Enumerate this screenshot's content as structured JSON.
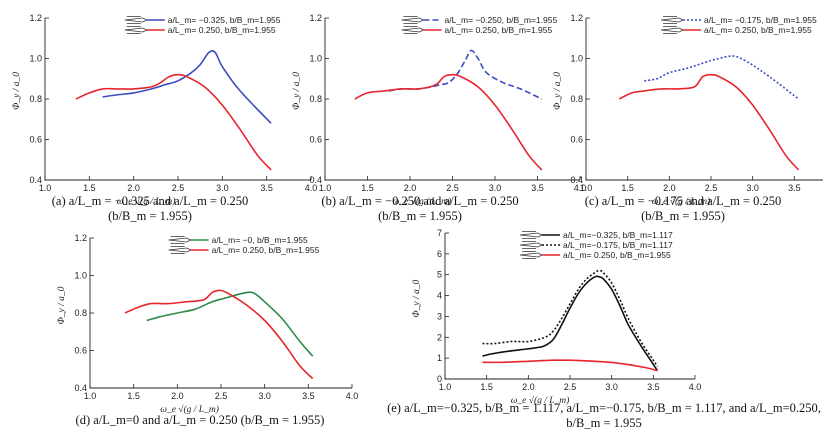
{
  "colors": {
    "blue": "#3b4cc0",
    "red": "#e8242c",
    "green": "#2e8a4a",
    "black": "#111111"
  },
  "chart_data": [
    {
      "id": "a",
      "type": "line",
      "caption": [
        "(a) a/L_m = −0.325 and a/L_m = 0.250",
        "(b/B_m = 1.955)"
      ],
      "xlabel": "ω_e √(g / L_m)",
      "ylabel": "Φ_y / a_0",
      "xlim": [
        1.0,
        4.0
      ],
      "ylim": [
        0.4,
        1.2
      ],
      "xticks": [
        "1.0",
        "1.5",
        "2.0",
        "2.5",
        "3.0",
        "3.5",
        "4.0"
      ],
      "yticks": [
        "0.4",
        "0.6",
        "0.8",
        "1.0",
        "1.2"
      ],
      "series": [
        {
          "name": "a/L_m= −0.325, b/B_m=1.955",
          "color": "blue",
          "dash": "solid",
          "x": [
            1.65,
            1.8,
            2.0,
            2.2,
            2.35,
            2.5,
            2.65,
            2.75,
            2.85,
            2.92,
            3.0,
            3.2,
            3.55
          ],
          "y": [
            0.81,
            0.82,
            0.83,
            0.85,
            0.87,
            0.89,
            0.93,
            0.97,
            1.03,
            1.03,
            0.96,
            0.84,
            0.68
          ]
        },
        {
          "name": "a/L_m= 0.250, b/B_m=1.955",
          "color": "red",
          "dash": "solid",
          "x": [
            1.35,
            1.5,
            1.65,
            1.8,
            2.0,
            2.2,
            2.3,
            2.4,
            2.5,
            2.6,
            2.8,
            3.0,
            3.2,
            3.4,
            3.55
          ],
          "y": [
            0.8,
            0.83,
            0.85,
            0.85,
            0.85,
            0.86,
            0.88,
            0.91,
            0.92,
            0.91,
            0.86,
            0.77,
            0.65,
            0.52,
            0.45
          ]
        }
      ]
    },
    {
      "id": "b",
      "type": "line",
      "caption": [
        "(b) a/L_m = −0.250 and a/L_m = 0.250",
        "(b/B_m = 1.955)"
      ],
      "xlabel": "ω_e √(g / L_m)",
      "ylabel": "Φ_y / a_0",
      "xlim": [
        1.0,
        4.0
      ],
      "ylim": [
        0.4,
        1.2
      ],
      "xticks": [
        "1.0",
        "1.5",
        "2.0",
        "2.5",
        "3.0",
        "3.5",
        "4.0"
      ],
      "yticks": [
        "0.4",
        "0.6",
        "0.8",
        "1.0",
        "1.2"
      ],
      "series": [
        {
          "name": "a/L_m= −0.250, b/B_m=1.955",
          "color": "blue",
          "dash": "dashed",
          "x": [
            1.75,
            1.9,
            2.1,
            2.25,
            2.35,
            2.45,
            2.55,
            2.65,
            2.72,
            2.8,
            2.9,
            3.1,
            3.3,
            3.55
          ],
          "y": [
            0.84,
            0.85,
            0.85,
            0.86,
            0.87,
            0.88,
            0.92,
            0.99,
            1.04,
            1.0,
            0.93,
            0.88,
            0.85,
            0.8
          ]
        },
        {
          "name": "a/L_m= 0.250, b/B_m=1.955",
          "color": "red",
          "dash": "solid",
          "x": [
            1.35,
            1.5,
            1.7,
            1.9,
            2.1,
            2.3,
            2.4,
            2.5,
            2.6,
            2.8,
            3.0,
            3.2,
            3.4,
            3.55
          ],
          "y": [
            0.8,
            0.83,
            0.84,
            0.85,
            0.85,
            0.87,
            0.91,
            0.92,
            0.91,
            0.86,
            0.77,
            0.65,
            0.52,
            0.45
          ]
        }
      ]
    },
    {
      "id": "c",
      "type": "line",
      "caption": [
        "(c) a/L_m = −0.175 and a/L_m = 0.250",
        "(b/B_m = 1.955)"
      ],
      "xlabel": "ω_e √(g / L_m)",
      "ylabel": "Φ_y / a_0",
      "xlim": [
        1.0,
        4.0
      ],
      "ylim": [
        0.4,
        1.2
      ],
      "xticks": [
        "1.0",
        "1.5",
        "2.0",
        "2.5",
        "3.0",
        "3.5",
        "4.0"
      ],
      "yticks": [
        "0.4",
        "0.6",
        "0.8",
        "1.0",
        "1.2"
      ],
      "series": [
        {
          "name": "a/L_m= −0.175, b/B_m=1.955",
          "color": "blue",
          "dash": "dotted",
          "x": [
            1.7,
            1.85,
            2.0,
            2.2,
            2.35,
            2.5,
            2.6,
            2.7,
            2.8,
            2.95,
            3.1,
            3.3,
            3.55
          ],
          "y": [
            0.89,
            0.9,
            0.93,
            0.95,
            0.97,
            0.99,
            1.0,
            1.01,
            1.01,
            0.98,
            0.94,
            0.88,
            0.8
          ]
        },
        {
          "name": "a/L_m= 0.250, b/B_m=1.955",
          "color": "red",
          "dash": "solid",
          "x": [
            1.4,
            1.55,
            1.7,
            1.9,
            2.1,
            2.3,
            2.4,
            2.5,
            2.6,
            2.8,
            3.0,
            3.2,
            3.4,
            3.55
          ],
          "y": [
            0.8,
            0.83,
            0.84,
            0.85,
            0.85,
            0.86,
            0.91,
            0.92,
            0.91,
            0.86,
            0.77,
            0.65,
            0.52,
            0.45
          ]
        }
      ]
    },
    {
      "id": "d",
      "type": "line",
      "caption": [
        "(d) a/L_m=0 and a/L_m = 0.250 (b/B_m = 1.955)"
      ],
      "xlabel": "ω_e √(g / L_m)",
      "ylabel": "Φ_y / a_0",
      "xlim": [
        1.0,
        4.0
      ],
      "ylim": [
        0.4,
        1.2
      ],
      "xticks": [
        "1.0",
        "1.5",
        "2.0",
        "2.5",
        "3.0",
        "3.5",
        "4.0"
      ],
      "yticks": [
        "0.4",
        "0.6",
        "0.8",
        "1.0",
        "1.2"
      ],
      "series": [
        {
          "name": "a/L_m= −0, b/B_m=1.955",
          "color": "green",
          "dash": "solid",
          "x": [
            1.65,
            1.8,
            2.0,
            2.2,
            2.4,
            2.55,
            2.7,
            2.8,
            2.85,
            2.9,
            3.0,
            3.2,
            3.4,
            3.55
          ],
          "y": [
            0.76,
            0.78,
            0.8,
            0.82,
            0.86,
            0.88,
            0.9,
            0.91,
            0.91,
            0.9,
            0.86,
            0.77,
            0.65,
            0.57
          ]
        },
        {
          "name": "a/L_m= 0.250, b/B_m=1.955",
          "color": "red",
          "dash": "solid",
          "x": [
            1.4,
            1.55,
            1.7,
            1.9,
            2.1,
            2.3,
            2.4,
            2.5,
            2.6,
            2.8,
            3.0,
            3.2,
            3.4,
            3.55
          ],
          "y": [
            0.8,
            0.83,
            0.85,
            0.85,
            0.86,
            0.87,
            0.91,
            0.92,
            0.9,
            0.84,
            0.76,
            0.65,
            0.52,
            0.45
          ]
        }
      ]
    },
    {
      "id": "e",
      "type": "line",
      "caption": [
        "(e) a/L_m=−0.325, b/B_m = 1.117, a/L_m=−0.175, b/B_m = 1.117, and a/L_m=0.250,",
        "b/B_m = 1.955"
      ],
      "xlabel": "ω_e √(g / L_m)",
      "ylabel": "Φ_y / a_0",
      "xlim": [
        1.0,
        4.0
      ],
      "ylim": [
        0,
        7
      ],
      "xticks": [
        "1.0",
        "1.5",
        "2.0",
        "2.5",
        "3.0",
        "3.5",
        "4.0"
      ],
      "yticks": [
        "0",
        "1",
        "2",
        "3",
        "4",
        "5",
        "6",
        "7"
      ],
      "series": [
        {
          "name": "a/L_m=−0.325, b/B_m=1.117",
          "color": "black",
          "dash": "solid",
          "x": [
            1.45,
            1.55,
            1.7,
            1.9,
            2.1,
            2.2,
            2.3,
            2.4,
            2.5,
            2.6,
            2.7,
            2.8,
            2.85,
            2.9,
            3.0,
            3.1,
            3.2,
            3.35,
            3.5,
            3.55
          ],
          "y": [
            1.1,
            1.2,
            1.3,
            1.4,
            1.5,
            1.6,
            1.9,
            2.6,
            3.4,
            4.1,
            4.6,
            4.9,
            4.9,
            4.8,
            4.3,
            3.5,
            2.6,
            1.6,
            0.7,
            0.4
          ]
        },
        {
          "name": "a/L_m=−0.175, b/B_m=1.117",
          "color": "black",
          "dash": "dotted",
          "x": [
            1.45,
            1.6,
            1.8,
            2.0,
            2.2,
            2.3,
            2.4,
            2.5,
            2.6,
            2.7,
            2.8,
            2.85,
            2.9,
            3.0,
            3.1,
            3.2,
            3.35,
            3.5,
            3.55
          ],
          "y": [
            1.7,
            1.7,
            1.8,
            1.8,
            2.0,
            2.3,
            2.9,
            3.6,
            4.3,
            4.8,
            5.1,
            5.2,
            5.1,
            4.6,
            3.8,
            2.9,
            1.8,
            0.9,
            0.6
          ]
        },
        {
          "name": "a/L_m= 0.250, b/B_m=1.955",
          "color": "red",
          "dash": "solid",
          "x": [
            1.45,
            1.7,
            2.0,
            2.3,
            2.5,
            2.8,
            3.1,
            3.4,
            3.55
          ],
          "y": [
            0.8,
            0.8,
            0.85,
            0.9,
            0.9,
            0.85,
            0.75,
            0.55,
            0.4
          ]
        }
      ]
    }
  ]
}
